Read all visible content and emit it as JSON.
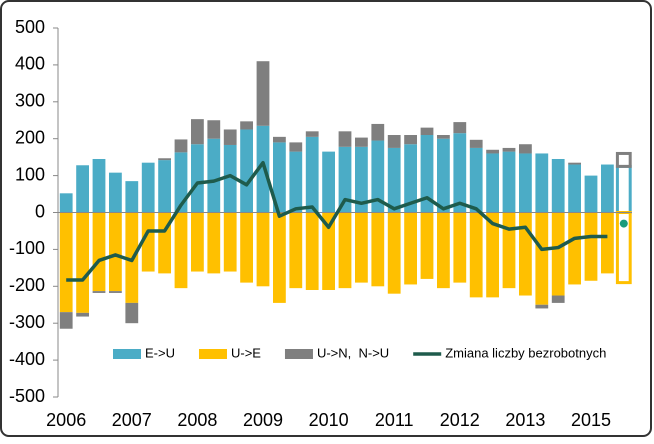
{
  "chart_data": {
    "type": "bar",
    "categories": [
      "2006",
      null,
      null,
      null,
      "2007",
      null,
      null,
      null,
      "2008",
      null,
      null,
      null,
      "2009",
      null,
      null,
      null,
      "2010",
      null,
      null,
      null,
      "2011",
      null,
      null,
      null,
      "2012",
      null,
      null,
      null,
      "2013",
      null,
      null,
      null,
      "2015",
      null,
      null
    ],
    "series": [
      {
        "name": "E->U",
        "color": "#4bacc6",
        "values": [
          52,
          128,
          145,
          108,
          85,
          135,
          142,
          163,
          185,
          200,
          183,
          225,
          235,
          190,
          165,
          205,
          165,
          178,
          178,
          195,
          175,
          185,
          210,
          200,
          215,
          175,
          160,
          165,
          160,
          160,
          145,
          130,
          100,
          130,
          125
        ]
      },
      {
        "name": "U->E",
        "color": "#ffc000",
        "values": [
          -270,
          -272,
          -213,
          -213,
          -245,
          -160,
          -165,
          -205,
          -160,
          -165,
          -160,
          -190,
          -200,
          -245,
          -205,
          -210,
          -210,
          -205,
          -190,
          -200,
          -220,
          -195,
          -180,
          -205,
          -190,
          -230,
          -230,
          -205,
          -225,
          -250,
          -225,
          -195,
          -185,
          -165,
          -190
        ]
      },
      {
        "name": "U->N,  N->U",
        "color": "#7f7f7f",
        "values": [
          -45,
          -10,
          -5,
          -5,
          -55,
          0,
          5,
          35,
          68,
          50,
          42,
          22,
          175,
          15,
          25,
          15,
          0,
          42,
          25,
          45,
          35,
          25,
          20,
          10,
          30,
          22,
          10,
          10,
          25,
          -10,
          -20,
          5,
          0,
          0,
          35
        ]
      },
      {
        "name": "Zmiana liczby bezrobotnych",
        "type": "line",
        "color": "#1e5b4c",
        "values": [
          -183,
          -183,
          -130,
          -115,
          -130,
          -50,
          -50,
          20,
          80,
          85,
          100,
          75,
          135,
          -10,
          10,
          15,
          -40,
          35,
          25,
          35,
          10,
          25,
          40,
          10,
          25,
          10,
          -30,
          -45,
          -40,
          -100,
          -95,
          -70,
          -65,
          -65,
          -30
        ]
      }
    ],
    "forecast_from": 34,
    "ylim": [
      -500,
      500
    ],
    "yticks": [
      -500,
      -400,
      -300,
      -200,
      -100,
      0,
      100,
      200,
      300,
      400,
      500
    ],
    "legend": "bottom"
  }
}
